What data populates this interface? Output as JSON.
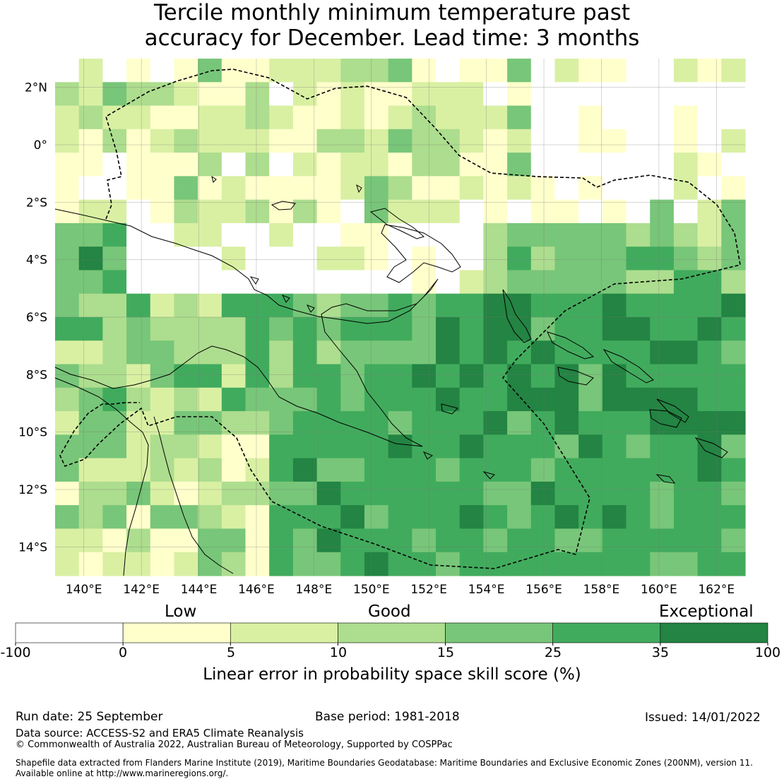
{
  "title": {
    "line1": "Tercile monthly minimum temperature past",
    "line2": "accuracy for December. Lead time: 3 months"
  },
  "map": {
    "lon_labels": [
      "140°E",
      "142°E",
      "144°E",
      "146°E",
      "148°E",
      "150°E",
      "152°E",
      "154°E",
      "156°E",
      "158°E",
      "160°E",
      "162°E"
    ],
    "lon_values": [
      140,
      142,
      144,
      146,
      148,
      150,
      152,
      154,
      156,
      158,
      160,
      162
    ],
    "lat_labels": [
      "2°N",
      "0°",
      "2°S",
      "4°S",
      "6°S",
      "8°S",
      "10°S",
      "12°S",
      "14°S"
    ],
    "lat_values": [
      2,
      0,
      -2,
      -4,
      -6,
      -8,
      -10,
      -12,
      -14
    ],
    "extent": {
      "lon_min": 139,
      "lon_max": 163,
      "lat_min": -15,
      "lat_max": 3
    }
  },
  "colorbar": {
    "categories": {
      "low": "Low",
      "good": "Good",
      "exceptional": "Exceptional"
    },
    "ticks": [
      "-100",
      "0",
      "5",
      "10",
      "15",
      "25",
      "35",
      "100"
    ],
    "colors": [
      "#ffffff",
      "#ffffcc",
      "#d9f0a3",
      "#addd8e",
      "#78c679",
      "#41ab5d",
      "#238443"
    ],
    "label": "Linear error in probability space skill score (%)"
  },
  "footer": {
    "run_date": "Run date: 25 September",
    "base_period": "Base period: 1981-2018",
    "issued": "Issued: 14/01/2022",
    "data_source": "Data source: ACCESS-S2 and ERA5 Climate Reanalysis",
    "copyright": "© Commonwealth of Australia 2022, Australian Bureau of Meteorology, Supported by COSPPac",
    "shapefile_line1": "Shapefile data extracted from Flanders Marine Institute (2019), Maritime Boundaries Geodatabase: Maritime Boundaries and Exclusive Economic Zones (200NM), version 11.",
    "shapefile_line2": "Available online at http://www.marineregions.org/."
  }
}
